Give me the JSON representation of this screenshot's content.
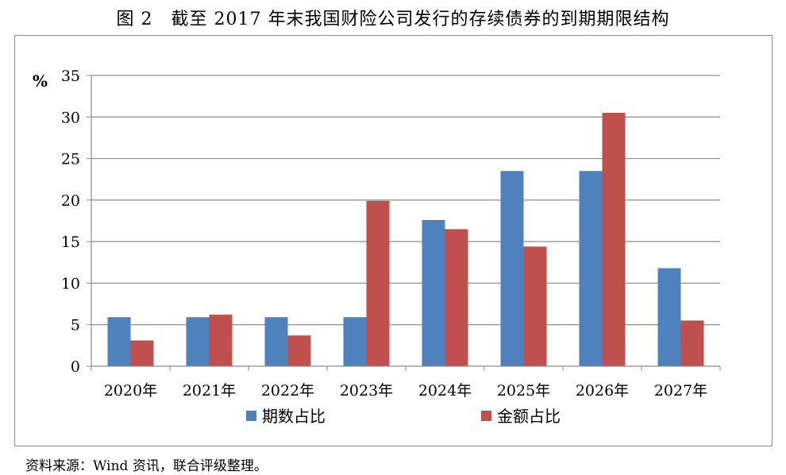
{
  "title": "图 2　截至 2017 年末我国财险公司发行的存续债券的到期期限结构",
  "source": "资料来源：Wind 资讯，联合评级整理。",
  "chart_data": {
    "type": "bar",
    "categories": [
      "2020年",
      "2021年",
      "2022年",
      "2023年",
      "2024年",
      "2025年",
      "2026年",
      "2027年"
    ],
    "series": [
      {
        "name": "期数占比",
        "color": "#4F81BD",
        "values": [
          5.9,
          5.9,
          5.9,
          5.9,
          17.6,
          23.5,
          23.5,
          11.8
        ]
      },
      {
        "name": "金额占比",
        "color": "#C0504D",
        "values": [
          3.1,
          6.2,
          3.7,
          19.9,
          16.5,
          14.4,
          30.5,
          5.5
        ]
      }
    ],
    "ylabel": "%",
    "ylim": [
      0,
      35
    ],
    "yticks": [
      0,
      5,
      10,
      15,
      20,
      25,
      30,
      35
    ],
    "grid": true,
    "legend": "bottom"
  }
}
